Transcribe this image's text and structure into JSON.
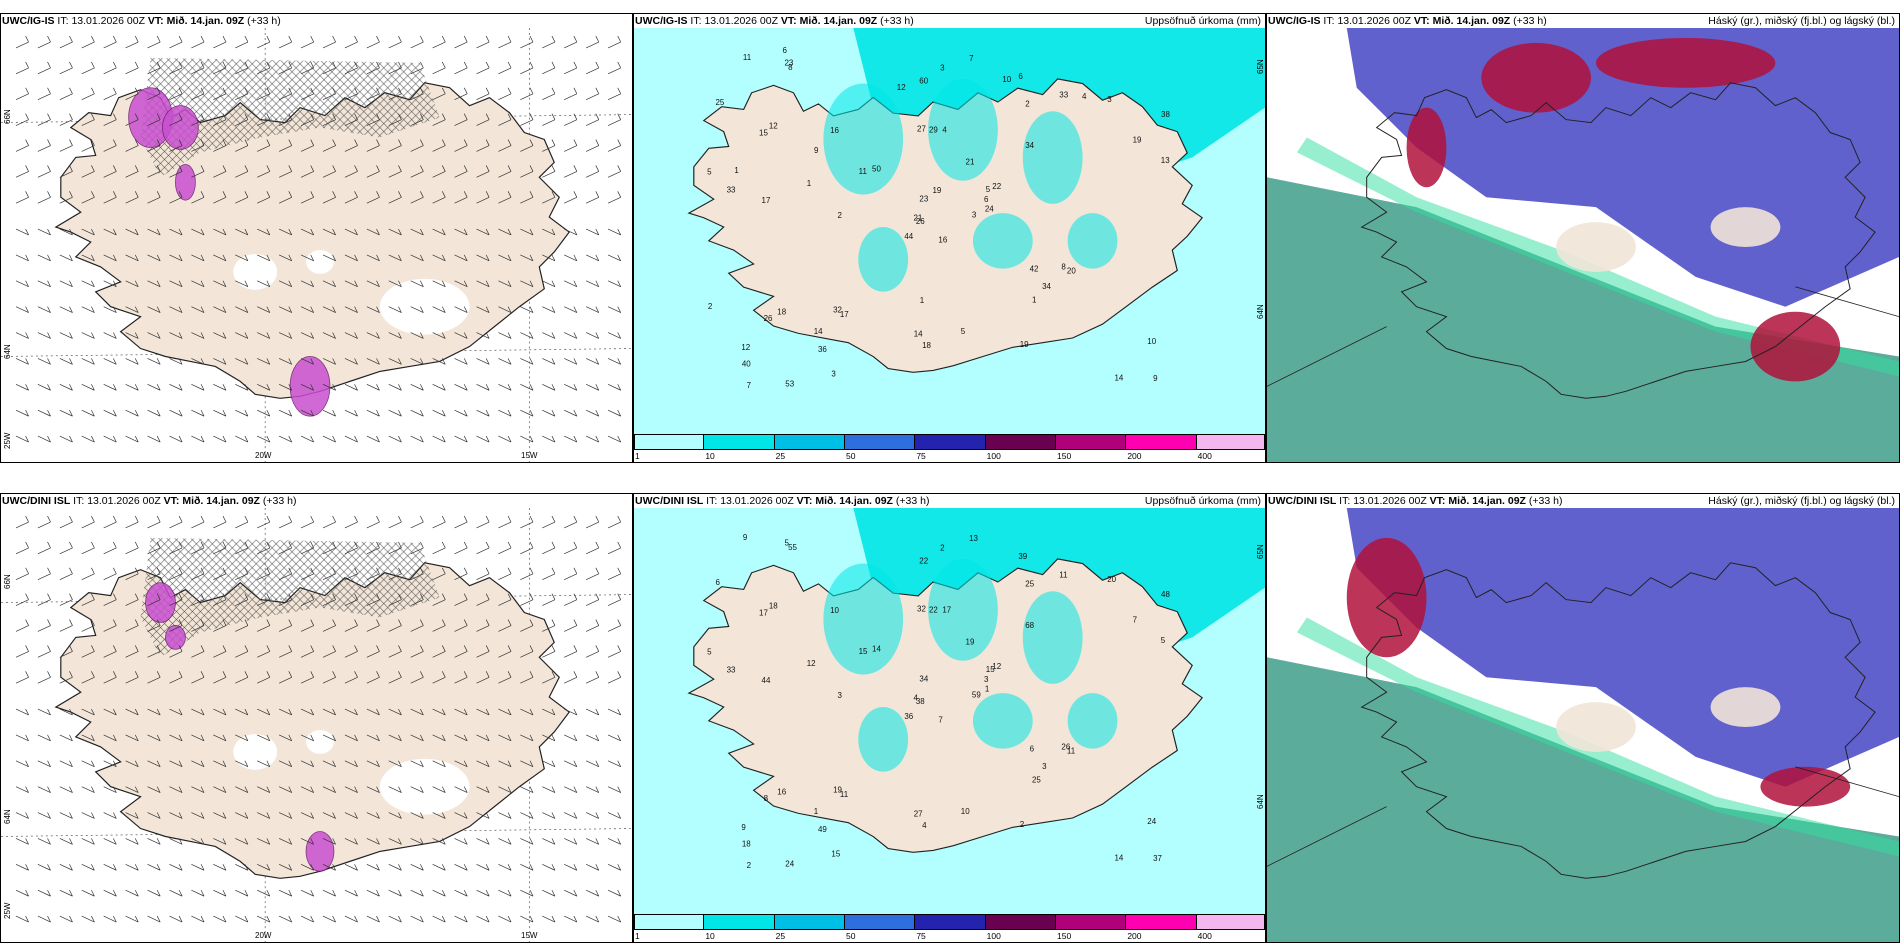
{
  "rows": [
    {
      "model": "UWC/IG-IS",
      "it_label": "IT:",
      "it_value": "13.01.2026 00Z",
      "vt_label": "VT:",
      "vt_value": "Mið. 14.jan. 09Z",
      "lead": "(+33 h)",
      "wind_panel": {
        "lat_labels": [
          "66N",
          "64N"
        ],
        "lon_labels": [
          "25W",
          "20W",
          "15W"
        ]
      },
      "precip_panel": {
        "title_right": "Uppsöfnuð úrkoma (mm)",
        "lat_labels": [
          "65N",
          "64N"
        ],
        "numbers": [
          "16",
          "15",
          "26",
          "12",
          "5",
          "17",
          "6",
          "4",
          "2",
          "3",
          "8",
          "9",
          "17",
          "38",
          "44",
          "34",
          "53",
          "27",
          "21",
          "18",
          "50",
          "40",
          "36",
          "29",
          "22",
          "20",
          "12",
          "60",
          "33",
          "42",
          "13",
          "21",
          "14",
          "23",
          "16",
          "33",
          "32",
          "14",
          "10",
          "8",
          "7",
          "11",
          "1",
          "1",
          "3",
          "5",
          "6",
          "7",
          "18",
          "24",
          "26",
          "19",
          "25",
          "34",
          "19",
          "14",
          "23",
          "11",
          "5",
          "3",
          "3",
          "2",
          "1",
          "9",
          "4",
          "6",
          "10",
          "12",
          "19",
          "2",
          "1"
        ]
      },
      "cloud_panel": {
        "title_right": "Háský (gr.), miðský (fj.bl.) og lágský (bl.)"
      }
    },
    {
      "model": "UWC/DINI ISL",
      "it_label": "IT:",
      "it_value": "13.01.2026 00Z",
      "vt_label": "VT:",
      "vt_value": "Mið. 14.jan. 09Z",
      "lead": "(+33 h)",
      "wind_panel": {
        "lat_labels": [
          "66N",
          "64N"
        ],
        "lon_labels": [
          "25W",
          "20W",
          "15W"
        ]
      },
      "precip_panel": {
        "title_right": "Uppsöfnuð úrkoma (mm)",
        "lat_labels": [
          "65N",
          "64N"
        ],
        "numbers": [
          "7",
          "17",
          "38",
          "9",
          "15",
          "11",
          "39",
          "17",
          "25",
          "59",
          "55",
          "37",
          "44",
          "48",
          "36",
          "68",
          "24",
          "32",
          "19",
          "16",
          "14",
          "18",
          "49",
          "22",
          "12",
          "11",
          "18",
          "22",
          "33",
          "6",
          "5",
          "4",
          "27",
          "34",
          "10",
          "11",
          "19",
          "14",
          "24",
          "26",
          "13",
          "15",
          "12",
          "25",
          "15",
          "5",
          "3",
          "2",
          "4",
          "1",
          "8",
          "7",
          "6",
          "3",
          "2",
          "1",
          "5",
          "9",
          "10",
          "20",
          "2",
          "3"
        ]
      },
      "cloud_panel": {
        "title_right": "Háský (gr.), miðský (fj.bl.) og lágský (bl.)"
      }
    }
  ],
  "colorbar": {
    "labels": [
      "1",
      "10",
      "25",
      "50",
      "75",
      "100",
      "150",
      "200",
      "400"
    ],
    "colors": [
      "#b3ffff",
      "#00e6e6",
      "#00bfe6",
      "#2e6fe0",
      "#2323b0",
      "#6a0050",
      "#b0007a",
      "#ff00b0",
      "#f4b6ee"
    ]
  },
  "colors": {
    "land": "#f3e6d8",
    "precip_light": "#b3ffff",
    "precip_mid": "#00e6e6",
    "high_cloud": "#b0103a",
    "mid_cloud": "#5050c8",
    "low_cloud": "#3f9e8a"
  }
}
